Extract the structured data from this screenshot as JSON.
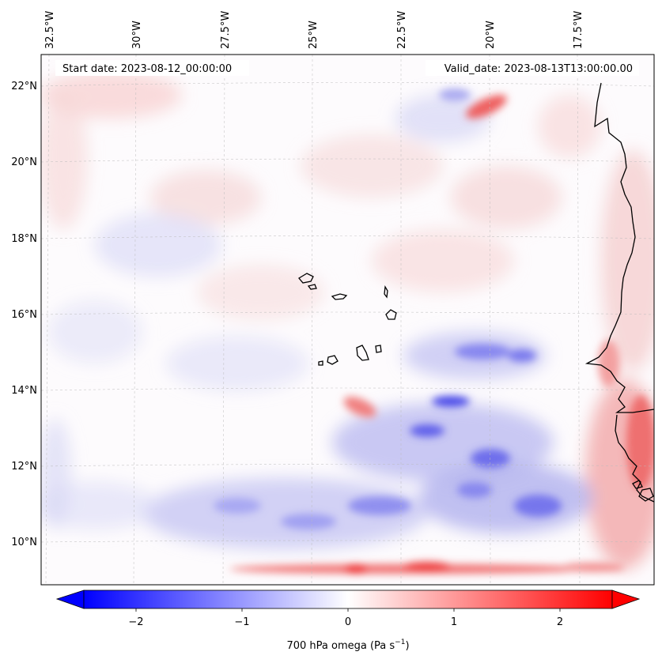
{
  "map": {
    "header_left": "Start date: 2023-08-12_00:00:00",
    "header_right": "Valid_date: 2023-08-13T13:00:00.00",
    "lon_labels": [
      "32.5°W",
      "30°W",
      "27.5°W",
      "25°W",
      "22.5°W",
      "20°W",
      "17.5°W"
    ],
    "lat_labels": [
      "22°N",
      "20°N",
      "18°N",
      "16°N",
      "14°N",
      "12°N",
      "10°N"
    ],
    "gridlines": "dashed"
  },
  "colorbar": {
    "label": "700 hPa omega (Pa s",
    "label_exponent": "−1",
    "label_suffix": ")",
    "ticks": [
      "−2",
      "−1",
      "0",
      "1",
      "2"
    ],
    "min_color": "#0000ff",
    "mid_color": "#ffffff",
    "max_color": "#ff0000",
    "extend": "both"
  },
  "colors": {
    "coastline": "#000000",
    "gridline": "#bbbbbb"
  }
}
